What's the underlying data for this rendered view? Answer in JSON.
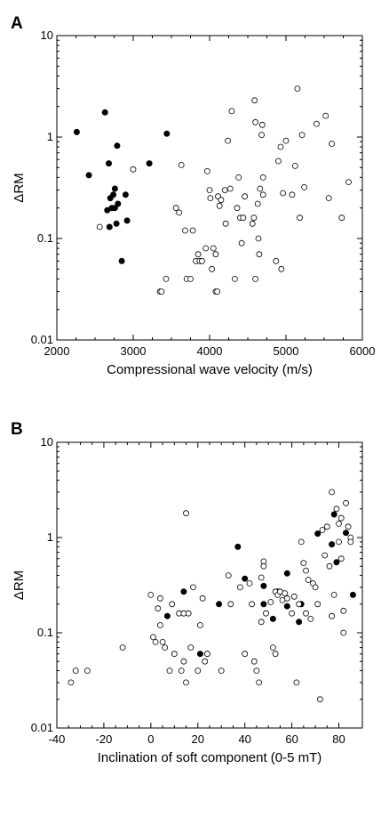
{
  "chart_data": [
    {
      "type": "scatter",
      "panel_label": "A",
      "xlabel": "Compressional wave velocity (m/s)",
      "ylabel": "ΔRM",
      "xlim": [
        2000,
        6000
      ],
      "ylim": [
        0.01,
        10
      ],
      "y_scale": "log",
      "x_ticks": [
        2000,
        3000,
        4000,
        5000,
        6000
      ],
      "y_ticks": [
        0.01,
        0.1,
        1,
        10
      ],
      "y_tick_labels": [
        "0.01",
        "0.1",
        "1",
        "10"
      ],
      "grid": false,
      "series": [
        {
          "marker": "filled-circle",
          "color": "#000000",
          "points": [
            [
              2260,
              1.12
            ],
            [
              2630,
              1.75
            ],
            [
              2420,
              0.42
            ],
            [
              2680,
              0.55
            ],
            [
              2790,
              0.82
            ],
            [
              3440,
              1.08
            ],
            [
              3210,
              0.55
            ],
            [
              2760,
              0.31
            ],
            [
              2740,
              0.27
            ],
            [
              2700,
              0.25
            ],
            [
              2900,
              0.27
            ],
            [
              2800,
              0.22
            ],
            [
              2660,
              0.19
            ],
            [
              2720,
              0.2
            ],
            [
              2760,
              0.2
            ],
            [
              2920,
              0.15
            ],
            [
              2780,
              0.14
            ],
            [
              2690,
              0.13
            ],
            [
              2850,
              0.06
            ]
          ]
        },
        {
          "marker": "open-circle",
          "color": "#000000",
          "points": [
            [
              2560,
              0.13
            ],
            [
              3000,
              0.48
            ],
            [
              3350,
              0.03
            ],
            [
              3370,
              0.03
            ],
            [
              3430,
              0.04
            ],
            [
              3560,
              0.2
            ],
            [
              3600,
              0.18
            ],
            [
              3630,
              0.53
            ],
            [
              3680,
              0.12
            ],
            [
              3700,
              0.04
            ],
            [
              3750,
              0.04
            ],
            [
              3780,
              0.12
            ],
            [
              3820,
              0.06
            ],
            [
              3850,
              0.07
            ],
            [
              3870,
              0.06
            ],
            [
              3900,
              0.06
            ],
            [
              3950,
              0.08
            ],
            [
              3970,
              0.46
            ],
            [
              4000,
              0.3
            ],
            [
              4010,
              0.25
            ],
            [
              4030,
              0.05
            ],
            [
              4050,
              0.08
            ],
            [
              4080,
              0.07
            ],
            [
              4080,
              0.03
            ],
            [
              4100,
              0.03
            ],
            [
              4110,
              0.26
            ],
            [
              4130,
              0.21
            ],
            [
              4150,
              0.24
            ],
            [
              4200,
              0.3
            ],
            [
              4210,
              0.14
            ],
            [
              4240,
              0.92
            ],
            [
              4270,
              0.31
            ],
            [
              4290,
              1.8
            ],
            [
              4330,
              0.04
            ],
            [
              4360,
              0.2
            ],
            [
              4380,
              0.4
            ],
            [
              4400,
              0.16
            ],
            [
              4420,
              0.09
            ],
            [
              4440,
              0.16
            ],
            [
              4460,
              0.26
            ],
            [
              4560,
              0.14
            ],
            [
              4580,
              0.16
            ],
            [
              4590,
              2.3
            ],
            [
              4600,
              1.4
            ],
            [
              4600,
              0.04
            ],
            [
              4630,
              0.22
            ],
            [
              4640,
              0.1
            ],
            [
              4650,
              0.07
            ],
            [
              4660,
              0.31
            ],
            [
              4680,
              1.05
            ],
            [
              4690,
              1.32
            ],
            [
              4700,
              0.4
            ],
            [
              4700,
              0.27
            ],
            [
              4870,
              0.06
            ],
            [
              4900,
              0.58
            ],
            [
              4930,
              0.8
            ],
            [
              4940,
              0.05
            ],
            [
              4960,
              0.28
            ],
            [
              5000,
              0.92
            ],
            [
              5080,
              0.27
            ],
            [
              5120,
              0.52
            ],
            [
              5150,
              3.0
            ],
            [
              5180,
              0.16
            ],
            [
              5210,
              1.05
            ],
            [
              5240,
              0.32
            ],
            [
              5400,
              1.35
            ],
            [
              5520,
              1.62
            ],
            [
              5560,
              0.25
            ],
            [
              5600,
              0.86
            ],
            [
              5730,
              0.16
            ],
            [
              5820,
              0.36
            ]
          ]
        }
      ]
    },
    {
      "type": "scatter",
      "panel_label": "B",
      "xlabel": "Inclination of soft component (0-5 mT)",
      "ylabel": "ΔRM",
      "xlim": [
        -40,
        90
      ],
      "ylim": [
        0.01,
        10
      ],
      "y_scale": "log",
      "x_ticks": [
        -40,
        -20,
        0,
        20,
        40,
        60,
        80
      ],
      "y_ticks": [
        0.01,
        0.1,
        1,
        10
      ],
      "y_tick_labels": [
        "0.01",
        "0.1",
        "1",
        "10"
      ],
      "grid": false,
      "series": [
        {
          "marker": "filled-circle",
          "color": "#000000",
          "points": [
            [
              7,
              0.15
            ],
            [
              14,
              0.27
            ],
            [
              21,
              0.06
            ],
            [
              29,
              0.2
            ],
            [
              37,
              0.8
            ],
            [
              40,
              0.37
            ],
            [
              48,
              0.31
            ],
            [
              48,
              0.2
            ],
            [
              52,
              0.14
            ],
            [
              54,
              0.27
            ],
            [
              58,
              0.42
            ],
            [
              58,
              0.19
            ],
            [
              63,
              0.13
            ],
            [
              64,
              0.2
            ],
            [
              71,
              1.1
            ],
            [
              77,
              0.85
            ],
            [
              78,
              1.75
            ],
            [
              79,
              0.55
            ],
            [
              83,
              1.12
            ],
            [
              86,
              0.25
            ]
          ]
        },
        {
          "marker": "open-circle",
          "color": "#000000",
          "points": [
            [
              -34,
              0.03
            ],
            [
              -32,
              0.04
            ],
            [
              -27,
              0.04
            ],
            [
              -12,
              0.07
            ],
            [
              0,
              0.25
            ],
            [
              1,
              0.09
            ],
            [
              2,
              0.08
            ],
            [
              3,
              0.18
            ],
            [
              4,
              0.23
            ],
            [
              4,
              0.12
            ],
            [
              5,
              0.08
            ],
            [
              6,
              0.07
            ],
            [
              8,
              0.04
            ],
            [
              9,
              0.2
            ],
            [
              10,
              0.06
            ],
            [
              12,
              0.16
            ],
            [
              13,
              0.04
            ],
            [
              14,
              0.05
            ],
            [
              14,
              0.16
            ],
            [
              15,
              1.8
            ],
            [
              15,
              0.03
            ],
            [
              16,
              0.16
            ],
            [
              17,
              0.07
            ],
            [
              18,
              0.3
            ],
            [
              20,
              0.04
            ],
            [
              21,
              0.12
            ],
            [
              22,
              0.23
            ],
            [
              23,
              0.05
            ],
            [
              24,
              0.06
            ],
            [
              30,
              0.04
            ],
            [
              33,
              0.4
            ],
            [
              34,
              0.2
            ],
            [
              38,
              0.3
            ],
            [
              40,
              0.06
            ],
            [
              42,
              0.33
            ],
            [
              43,
              0.2
            ],
            [
              44,
              0.05
            ],
            [
              45,
              0.04
            ],
            [
              46,
              0.03
            ],
            [
              47,
              0.13
            ],
            [
              47,
              0.38
            ],
            [
              48,
              0.56
            ],
            [
              48,
              0.5
            ],
            [
              49,
              0.16
            ],
            [
              51,
              0.21
            ],
            [
              52,
              0.07
            ],
            [
              53,
              0.06
            ],
            [
              53,
              0.27
            ],
            [
              54,
              0.25
            ],
            [
              55,
              0.27
            ],
            [
              56,
              0.22
            ],
            [
              57,
              0.26
            ],
            [
              58,
              0.23
            ],
            [
              60,
              0.16
            ],
            [
              61,
              0.24
            ],
            [
              62,
              0.03
            ],
            [
              63,
              0.2
            ],
            [
              64,
              0.9
            ],
            [
              65,
              0.54
            ],
            [
              66,
              0.45
            ],
            [
              66,
              0.16
            ],
            [
              67,
              0.36
            ],
            [
              68,
              0.14
            ],
            [
              69,
              0.33
            ],
            [
              70,
              0.3
            ],
            [
              71,
              0.2
            ],
            [
              72,
              0.02
            ],
            [
              73,
              1.2
            ],
            [
              74,
              0.65
            ],
            [
              75,
              1.3
            ],
            [
              76,
              0.5
            ],
            [
              77,
              3.0
            ],
            [
              77,
              0.15
            ],
            [
              78,
              0.25
            ],
            [
              79,
              2.0
            ],
            [
              80,
              0.9
            ],
            [
              80,
              1.4
            ],
            [
              81,
              1.6
            ],
            [
              81,
              0.6
            ],
            [
              82,
              0.17
            ],
            [
              82,
              0.1
            ],
            [
              83,
              2.3
            ],
            [
              84,
              1.3
            ],
            [
              85,
              1.0
            ],
            [
              85,
              0.9
            ]
          ]
        }
      ]
    }
  ]
}
